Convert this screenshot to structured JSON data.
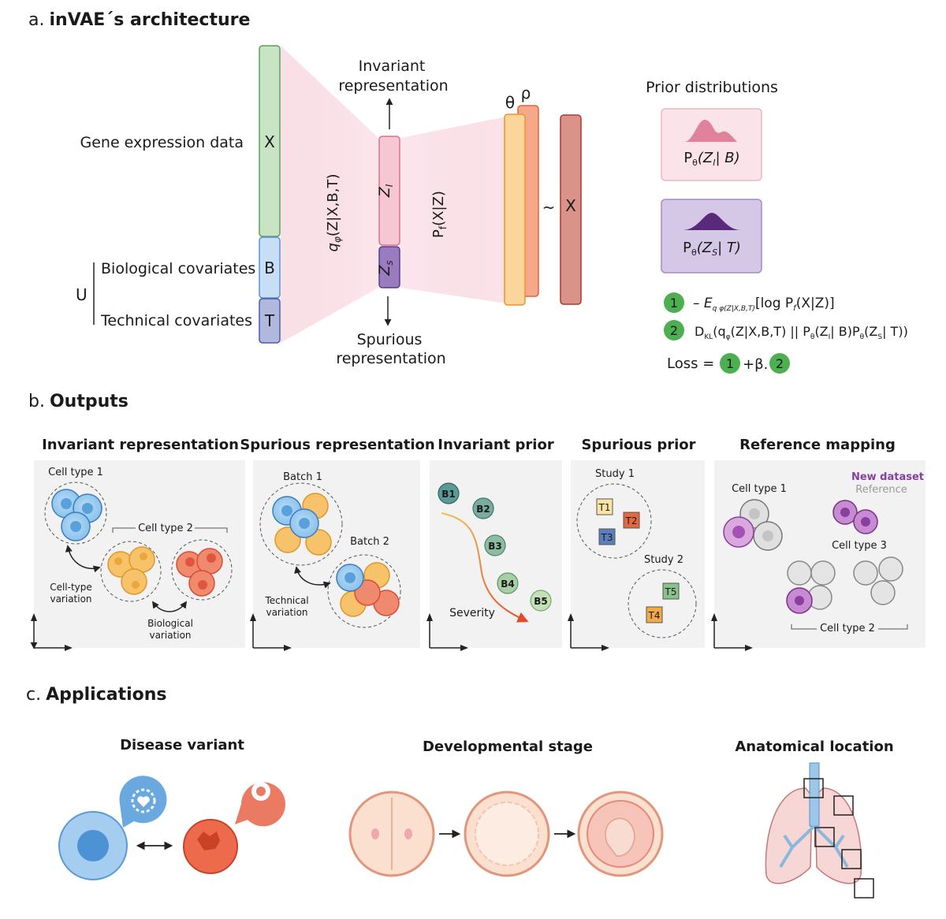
{
  "sections": {
    "a": {
      "prefix": "a.",
      "title": "inVAE´s architecture"
    },
    "b": {
      "prefix": "b.",
      "title": "Outputs"
    },
    "c": {
      "prefix": "c.",
      "title": "Applications"
    }
  },
  "architecture": {
    "gene_expression_label": "Gene expression data",
    "bio_cov_label": "Biological covariates",
    "tech_cov_label": "Technical covariates",
    "u_label": "U",
    "x_label": "X",
    "b_label": "B",
    "t_label": "T",
    "encoder_label": "q",
    "encoder_sub": "φ",
    "encoder_args": "(Z|X,B,T)",
    "zi_label": "Z",
    "zi_sub": "I",
    "zs_label": "Z",
    "zs_sub": "s",
    "decoder_label": "P",
    "decoder_sub": "f",
    "decoder_args": "(X|Z)",
    "invariant_rep_line1": "Invariant",
    "invariant_rep_line2": "representation",
    "spurious_rep_line1": "Spurious",
    "spurious_rep_line2": "representation",
    "theta_label": "θ",
    "rho_label": "ρ",
    "tilde": "~",
    "x_out_label": "X"
  },
  "priors": {
    "title": "Prior distributions",
    "invariant": {
      "p": "P",
      "sub": "θ",
      "args": "(Z",
      "zsub": "I",
      "cond": "| B)"
    },
    "spurious": {
      "p": "P",
      "sub": "θ",
      "args": "(Z",
      "zsub": "S",
      "cond": "| T)"
    },
    "colors": {
      "invariant": "#e0829c",
      "spurious": "#5a2a7a"
    }
  },
  "loss": {
    "n1": "1",
    "n2": "2",
    "term1_a": "– E",
    "term1_sub": "q φ(Z|X,B,T)",
    "term1_b": "[log P",
    "term1_sub2": "f",
    "term1_c": "(X|Z)]",
    "term2_a": "D",
    "term2_sub": "KL",
    "term2_b": "(q",
    "term2_sub2": "φ",
    "term2_c": "(Z|X,B,T) || P",
    "term2_sub3": "θ",
    "term2_d": "(Z",
    "term2_sub4": "I",
    "term2_e": "| B)P",
    "term2_sub5": "θ",
    "term2_f": "(Z",
    "term2_sub6": "S",
    "term2_g": "| T))",
    "loss_word": "Loss =",
    "beta": "+β."
  },
  "outputs": {
    "invariant": {
      "title": "Invariant representation",
      "cell_type_1": "Cell type 1",
      "cell_type_2": "Cell type 2",
      "celltype_var_1": "Cell-type",
      "celltype_var_2": "variation",
      "bio_var_1": "Biological",
      "bio_var_2": "variation"
    },
    "spurious": {
      "title": "Spurious representation",
      "batch1": "Batch 1",
      "batch2": "Batch 2",
      "tech_var_1": "Technical",
      "tech_var_2": "variation"
    },
    "invariant_prior": {
      "title": "Invariant prior",
      "nodes": [
        "B1",
        "B2",
        "B3",
        "B4",
        "B5"
      ],
      "severity": "Severity"
    },
    "spurious_prior": {
      "title": "Spurious prior",
      "study1": "Study 1",
      "study2": "Study 2",
      "t_labels": [
        "T1",
        "T2",
        "T3",
        "T5",
        "T4"
      ]
    },
    "reference_mapping": {
      "title": "Reference mapping",
      "new_dataset": "New dataset",
      "reference": "Reference",
      "cell_type_1": "Cell type 1",
      "cell_type_3": "Cell type 3",
      "cell_type_2": "Cell type 2"
    }
  },
  "applications": {
    "disease": "Disease variant",
    "development": "Developmental stage",
    "anatomy": "Anatomical location"
  }
}
